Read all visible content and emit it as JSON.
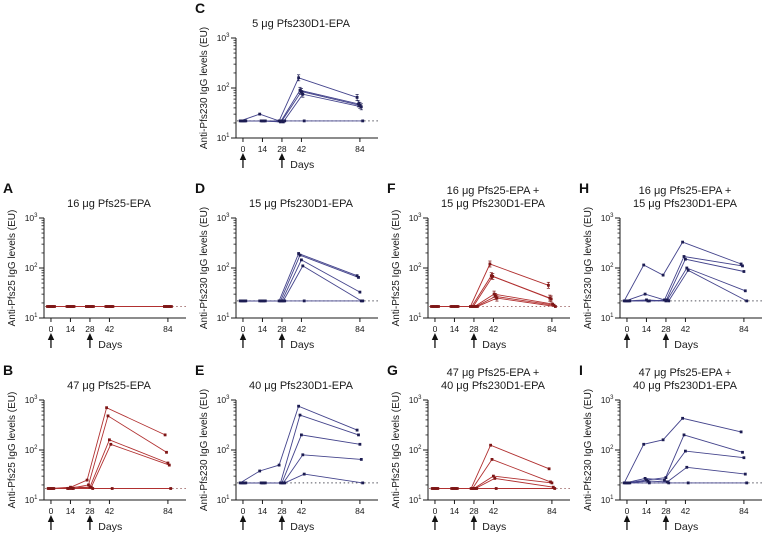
{
  "figure": {
    "background": "#ffffff",
    "type": "multi-panel line charts",
    "x_label": "Days"
  },
  "x_axis": {
    "label": "Days",
    "ticks": [
      0,
      14,
      28,
      42,
      84
    ],
    "vaccination_days": [
      0,
      28
    ]
  },
  "y_axis": {
    "scale": "log10",
    "range": [
      10,
      1000
    ],
    "tick_labels": [
      "10¹",
      "10²",
      "10³"
    ]
  },
  "colors": {
    "red_line": "#b13030",
    "red_marker": "#7e1616",
    "red_dotted": "#996060",
    "blue_line": "#44448c",
    "blue_marker": "#1c1c52",
    "blue_dotted": "#55555f",
    "axis": "#1a1a1a",
    "arrow": "#111111"
  },
  "chart_data": [
    {
      "letter": "A",
      "title": "16 μg Pfs25-EPA",
      "ylabel": "Anti-Pfs25 IgG levels (EU)",
      "xlabel": "Days",
      "type": "line",
      "x": [
        0,
        14,
        28,
        42,
        84
      ],
      "ylim": [
        10,
        1000
      ],
      "log_y": true,
      "line_color": "#b13030",
      "marker_color": "#7e1616",
      "dotted_color": "#996060",
      "baseline": 17,
      "vaccination_arrows": [
        0,
        28
      ],
      "series": [
        {
          "name": "subject-1",
          "values": [
            17,
            17,
            17,
            17,
            17
          ]
        },
        {
          "name": "subject-2",
          "values": [
            17,
            17,
            17,
            17,
            17
          ]
        },
        {
          "name": "subject-3",
          "values": [
            17,
            17,
            17,
            17,
            17
          ]
        },
        {
          "name": "subject-4",
          "values": [
            17,
            17,
            17,
            17,
            17
          ]
        },
        {
          "name": "subject-5",
          "values": [
            17,
            17,
            17,
            17,
            17
          ]
        },
        {
          "name": "subject-6",
          "values": [
            17,
            17,
            17,
            17,
            17
          ]
        }
      ]
    },
    {
      "letter": "B",
      "title": "47 μg Pfs25-EPA",
      "ylabel": "Anti-Pfs25 IgG levels (EU)",
      "xlabel": "Days",
      "type": "line",
      "x": [
        0,
        14,
        28,
        42,
        84
      ],
      "ylim": [
        10,
        1000
      ],
      "log_y": true,
      "line_color": "#b13030",
      "marker_color": "#7e1616",
      "dotted_color": "#996060",
      "baseline": 17,
      "vaccination_arrows": [
        0,
        28
      ],
      "series": [
        {
          "name": "subject-1",
          "values": [
            17,
            17,
            25,
            700,
            200
          ]
        },
        {
          "name": "subject-2",
          "values": [
            17,
            17,
            20,
            480,
            90
          ]
        },
        {
          "name": "subject-3",
          "values": [
            17,
            18,
            18,
            160,
            55
          ]
        },
        {
          "name": "subject-4",
          "values": [
            17,
            17,
            18,
            130,
            50
          ]
        },
        {
          "name": "subject-5",
          "values": [
            17,
            17,
            17,
            17,
            17
          ]
        }
      ]
    },
    {
      "letter": "C",
      "title": "5 μg Pfs230D1-EPA",
      "ylabel": "Anti-Pfs230 IgG levels (EU)",
      "xlabel": "Days",
      "type": "line",
      "x": [
        0,
        14,
        28,
        42,
        84
      ],
      "ylim": [
        10,
        1000
      ],
      "log_y": true,
      "line_color": "#44448c",
      "marker_color": "#1c1c52",
      "dotted_color": "#55555f",
      "baseline": 22,
      "vaccination_arrows": [
        0,
        28
      ],
      "error_bar_days": [
        42,
        84
      ],
      "series": [
        {
          "name": "subject-1",
          "values": [
            22,
            30,
            22,
            160,
            65
          ]
        },
        {
          "name": "subject-2",
          "values": [
            22,
            22,
            21,
            90,
            48
          ]
        },
        {
          "name": "subject-3",
          "values": [
            22,
            22,
            22,
            85,
            45
          ]
        },
        {
          "name": "subject-4",
          "values": [
            22,
            22,
            21,
            75,
            42
          ]
        },
        {
          "name": "subject-5",
          "values": [
            22,
            22,
            22,
            22,
            22
          ]
        }
      ]
    },
    {
      "letter": "D",
      "title": "15 μg Pfs230D1-EPA",
      "ylabel": "Anti-Pfs230 IgG levels (EU)",
      "xlabel": "Days",
      "type": "line",
      "x": [
        0,
        14,
        28,
        42,
        84
      ],
      "ylim": [
        10,
        1000
      ],
      "log_y": true,
      "line_color": "#44448c",
      "marker_color": "#1c1c52",
      "dotted_color": "#55555f",
      "baseline": 22,
      "vaccination_arrows": [
        0,
        28
      ],
      "series": [
        {
          "name": "subject-1",
          "values": [
            22,
            22,
            22,
            195,
            70
          ]
        },
        {
          "name": "subject-2",
          "values": [
            22,
            22,
            22,
            180,
            65
          ]
        },
        {
          "name": "subject-3",
          "values": [
            22,
            22,
            22,
            145,
            33
          ]
        },
        {
          "name": "subject-4",
          "values": [
            22,
            22,
            22,
            110,
            22
          ]
        },
        {
          "name": "subject-5",
          "values": [
            22,
            22,
            22,
            22,
            22
          ]
        }
      ]
    },
    {
      "letter": "E",
      "title": "40 μg Pfs230D1-EPA",
      "ylabel": "Anti-Pfs230 IgG levels (EU)",
      "xlabel": "Days",
      "type": "line",
      "x": [
        0,
        14,
        28,
        42,
        84
      ],
      "ylim": [
        10,
        1000
      ],
      "log_y": true,
      "line_color": "#44448c",
      "marker_color": "#1c1c52",
      "dotted_color": "#55555f",
      "baseline": 22,
      "vaccination_arrows": [
        0,
        28
      ],
      "series": [
        {
          "name": "subject-1",
          "values": [
            22,
            38,
            50,
            750,
            250
          ]
        },
        {
          "name": "subject-2",
          "values": [
            22,
            22,
            22,
            500,
            200
          ]
        },
        {
          "name": "subject-3",
          "values": [
            22,
            22,
            22,
            200,
            130
          ]
        },
        {
          "name": "subject-4",
          "values": [
            22,
            22,
            22,
            80,
            65
          ]
        },
        {
          "name": "subject-5",
          "values": [
            22,
            22,
            22,
            33,
            22
          ]
        }
      ]
    },
    {
      "letter": "F",
      "title": "16 μg Pfs25-EPA +\n15 μg Pfs230D1-EPA",
      "ylabel": "Anti-Pfs25 IgG levels (EU)",
      "xlabel": "Days",
      "type": "line",
      "x": [
        0,
        14,
        28,
        42,
        84
      ],
      "ylim": [
        10,
        1000
      ],
      "log_y": true,
      "line_color": "#b13030",
      "marker_color": "#7e1616",
      "dotted_color": "#996060",
      "baseline": 17,
      "vaccination_arrows": [
        0,
        28
      ],
      "error_bar_days": [
        42,
        84
      ],
      "series": [
        {
          "name": "subject-1",
          "values": [
            17,
            17,
            17,
            120,
            45
          ]
        },
        {
          "name": "subject-2",
          "values": [
            17,
            17,
            17,
            70,
            25
          ]
        },
        {
          "name": "subject-3",
          "values": [
            17,
            17,
            17,
            68,
            24
          ]
        },
        {
          "name": "subject-4",
          "values": [
            17,
            17,
            17,
            30,
            19
          ]
        },
        {
          "name": "subject-5",
          "values": [
            17,
            17,
            17,
            27,
            18
          ]
        },
        {
          "name": "subject-6",
          "values": [
            17,
            17,
            17,
            25,
            17
          ]
        }
      ]
    },
    {
      "letter": "G",
      "title": "47 μg Pfs25-EPA +\n40 μg Pfs230D1-EPA",
      "ylabel": "Anti-Pfs25 IgG levels (EU)",
      "xlabel": "Days",
      "type": "line",
      "x": [
        0,
        14,
        28,
        42,
        84
      ],
      "ylim": [
        10,
        1000
      ],
      "log_y": true,
      "line_color": "#b13030",
      "marker_color": "#7e1616",
      "dotted_color": "#996060",
      "baseline": 17,
      "vaccination_arrows": [
        0,
        28
      ],
      "series": [
        {
          "name": "subject-1",
          "values": [
            17,
            17,
            17,
            125,
            42
          ]
        },
        {
          "name": "subject-2",
          "values": [
            17,
            17,
            17,
            65,
            23
          ]
        },
        {
          "name": "subject-3",
          "values": [
            17,
            17,
            17,
            30,
            22
          ]
        },
        {
          "name": "subject-4",
          "values": [
            17,
            17,
            17,
            27,
            18
          ]
        },
        {
          "name": "subject-5",
          "values": [
            17,
            17,
            17,
            17,
            17
          ]
        }
      ]
    },
    {
      "letter": "H",
      "title": "16 μg Pfs25-EPA +\n15 μg Pfs230D1-EPA",
      "ylabel": "Anti-Pfs230 IgG levels (EU)",
      "xlabel": "Days",
      "type": "line",
      "x": [
        0,
        14,
        28,
        42,
        84
      ],
      "ylim": [
        10,
        1000
      ],
      "log_y": true,
      "line_color": "#44448c",
      "marker_color": "#1c1c52",
      "dotted_color": "#55555f",
      "baseline": 22,
      "vaccination_arrows": [
        0,
        28
      ],
      "series": [
        {
          "name": "subject-1",
          "values": [
            22,
            115,
            72,
            330,
            120
          ]
        },
        {
          "name": "subject-2",
          "values": [
            22,
            30,
            23,
            170,
            110
          ]
        },
        {
          "name": "subject-3",
          "values": [
            22,
            23,
            22,
            150,
            85
          ]
        },
        {
          "name": "subject-4",
          "values": [
            22,
            22,
            23,
            100,
            35
          ]
        },
        {
          "name": "subject-5",
          "values": [
            22,
            22,
            22,
            90,
            22
          ]
        }
      ]
    },
    {
      "letter": "I",
      "title": "47 μg Pfs25-EPA +\n40 μg Pfs230D1-EPA",
      "ylabel": "Anti-Pfs230 IgG levels (EU)",
      "xlabel": "Days",
      "type": "line",
      "x": [
        0,
        14,
        28,
        42,
        84
      ],
      "ylim": [
        10,
        1000
      ],
      "log_y": true,
      "line_color": "#44448c",
      "marker_color": "#1c1c52",
      "dotted_color": "#55555f",
      "baseline": 22,
      "vaccination_arrows": [
        0,
        28
      ],
      "series": [
        {
          "name": "subject-1",
          "values": [
            22,
            130,
            160,
            430,
            230
          ]
        },
        {
          "name": "subject-2",
          "values": [
            22,
            27,
            25,
            200,
            90
          ]
        },
        {
          "name": "subject-3",
          "values": [
            22,
            25,
            28,
            95,
            70
          ]
        },
        {
          "name": "subject-4",
          "values": [
            22,
            24,
            23,
            45,
            33
          ]
        },
        {
          "name": "subject-5",
          "values": [
            22,
            22,
            22,
            22,
            22
          ]
        }
      ]
    }
  ]
}
